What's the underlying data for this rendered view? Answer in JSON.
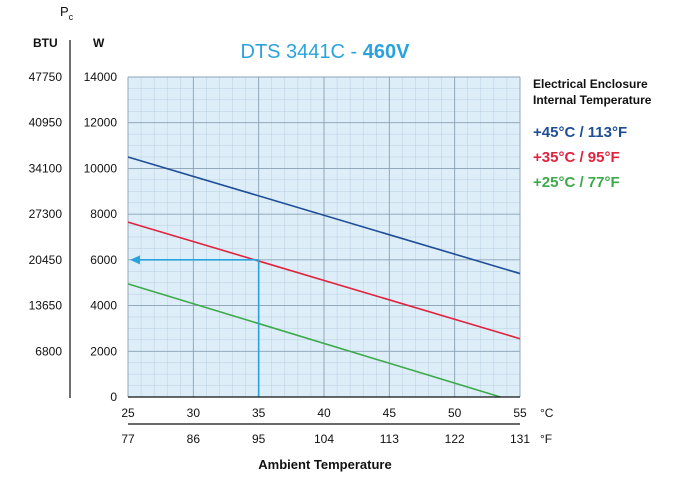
{
  "chart_data": {
    "type": "line",
    "title_main": "DTS 3441C - ",
    "title_bold": "460V",
    "y_axis": {
      "symbol": "P",
      "symbol_sub": "c",
      "left_unit": "BTU",
      "right_unit": "W",
      "w_ticks": [
        "14000",
        "12000",
        "10000",
        "8000",
        "6000",
        "4000",
        "2000",
        "0"
      ],
      "btu_ticks": [
        "47750",
        "40950",
        "34100",
        "27300",
        "20450",
        "13650",
        "6800"
      ],
      "ylim": [
        0,
        14000
      ]
    },
    "x_axis": {
      "celsius_unit": "°C",
      "fahrenheit_unit": "°F",
      "celsius_ticks": [
        "25",
        "30",
        "35",
        "40",
        "45",
        "50",
        "55"
      ],
      "fahrenheit_ticks": [
        "77",
        "86",
        "95",
        "104",
        "113",
        "122",
        "131"
      ],
      "xlim": [
        25,
        55
      ],
      "label": "Ambient Temperature"
    },
    "legend": {
      "heading_line1": "Electrical Enclosure",
      "heading_line2": "Internal Temperature"
    },
    "series": [
      {
        "name": "+45°C / 113°F",
        "color": "#1f4e97",
        "x": [
          25,
          55
        ],
        "y": [
          10500,
          5400
        ]
      },
      {
        "name": "+35°C / 95°F",
        "color": "#e0233e",
        "x": [
          25,
          55
        ],
        "y": [
          7650,
          2550
        ]
      },
      {
        "name": "+25°C / 77°F",
        "color": "#3daa4a",
        "x": [
          25,
          53.5
        ],
        "y": [
          4950,
          0
        ]
      }
    ],
    "example_guide": {
      "color": "#2aa3dc",
      "x": 35,
      "y": 6000
    },
    "grid": true,
    "colors": {
      "plot_background": "#ddeef9",
      "grid_major": "#8aa1b4",
      "grid_minor": "#b9cddd",
      "title": "#2aa3dc"
    }
  }
}
